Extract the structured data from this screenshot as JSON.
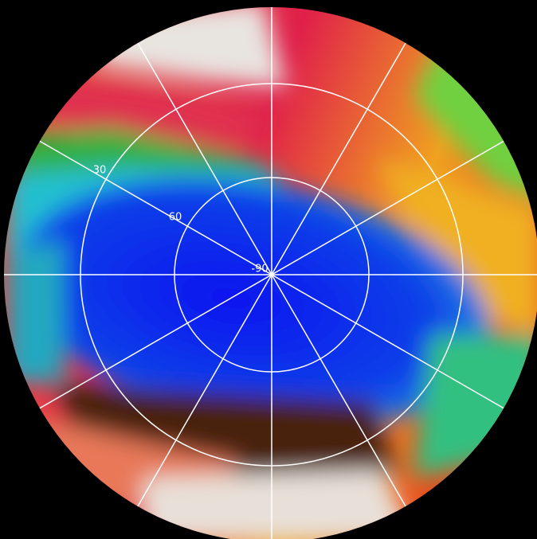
{
  "map": {
    "labels": [
      "30",
      "60",
      "-90"
    ]
  }
}
